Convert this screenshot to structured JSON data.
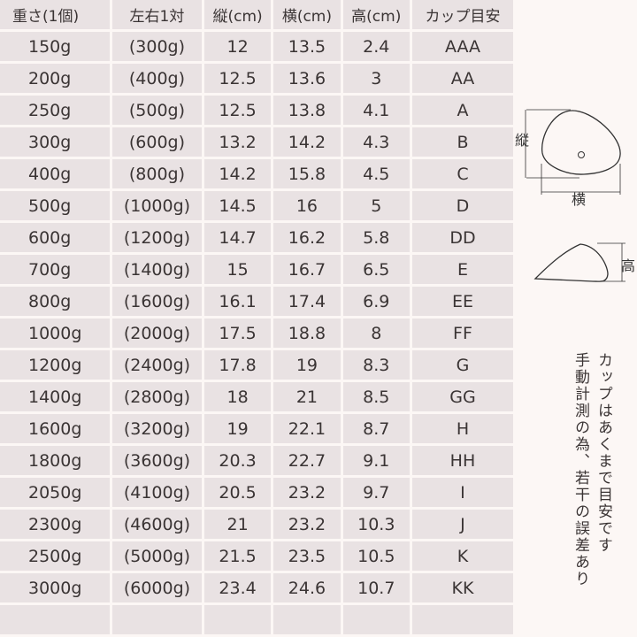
{
  "headers": [
    "重さ(1個)",
    "左右1対",
    "縦(cm)",
    "横(cm)",
    "高(cm)",
    "カップ目安"
  ],
  "rows": [
    [
      "150g",
      "(300g)",
      "12",
      "13.5",
      "2.4",
      "AAA"
    ],
    [
      "200g",
      "(400g)",
      "12.5",
      "13.6",
      "3",
      "AA"
    ],
    [
      "250g",
      "(500g)",
      "12.5",
      "13.8",
      "4.1",
      "A"
    ],
    [
      "300g",
      "(600g)",
      "13.2",
      "14.2",
      "4.3",
      "B"
    ],
    [
      "400g",
      "(800g)",
      "14.2",
      "15.8",
      "4.5",
      "C"
    ],
    [
      "500g",
      "(1000g)",
      "14.5",
      "16",
      "5",
      "D"
    ],
    [
      "600g",
      "(1200g)",
      "14.7",
      "16.2",
      "5.8",
      "DD"
    ],
    [
      "700g",
      "(1400g)",
      "15",
      "16.7",
      "6.5",
      "E"
    ],
    [
      "800g",
      "(1600g)",
      "16.1",
      "17.4",
      "6.9",
      "EE"
    ],
    [
      "1000g",
      "(2000g)",
      "17.5",
      "18.8",
      "8",
      "FF"
    ],
    [
      "1200g",
      "(2400g)",
      "17.8",
      "19",
      "8.3",
      "G"
    ],
    [
      "1400g",
      "(2800g)",
      "18",
      "21",
      "8.5",
      "GG"
    ],
    [
      "1600g",
      "(3200g)",
      "19",
      "22.1",
      "8.7",
      "H"
    ],
    [
      "1800g",
      "(3600g)",
      "20.3",
      "22.7",
      "9.1",
      "HH"
    ],
    [
      "2050g",
      "(4100g)",
      "20.5",
      "23.2",
      "9.7",
      "I"
    ],
    [
      "2300g",
      "(4600g)",
      "21",
      "23.2",
      "10.3",
      "J"
    ],
    [
      "2500g",
      "(5000g)",
      "21.5",
      "23.5",
      "10.5",
      "K"
    ],
    [
      "3000g",
      "(6000g)",
      "23.4",
      "24.6",
      "10.7",
      "KK"
    ]
  ],
  "diagram": {
    "height_label": "縦",
    "width_label": "横",
    "depth_label": "高"
  },
  "notes": [
    "カップはあくまで目安です",
    "手動計測の為、若干の誤差あり"
  ]
}
